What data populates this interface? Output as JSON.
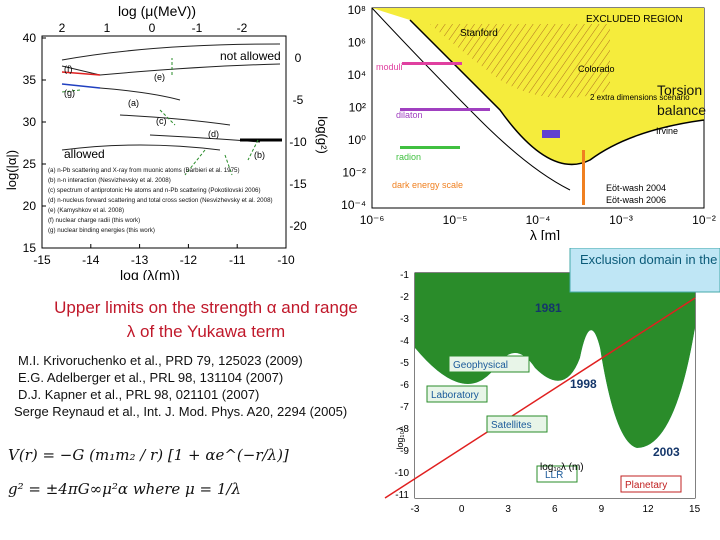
{
  "chart_data": [
    {
      "type": "line",
      "name": "krivoruchenko-bounds",
      "top_axis_label": "log (μ(MeV))",
      "top_ticks": [
        "2",
        "1",
        "0",
        "-1",
        "-2"
      ],
      "xlabel": "log (λ(m))",
      "xticks": [
        "-15",
        "-14",
        "-13",
        "-12",
        "-11",
        "-10"
      ],
      "xlim": [
        -15,
        -10
      ],
      "ylabel": "log(|α|)",
      "yticks": [
        "40",
        "35",
        "30",
        "25",
        "20",
        "15"
      ],
      "ylim": [
        15,
        40
      ],
      "right_axis_label": "log(g²)",
      "right_ticks": [
        "0",
        "-5",
        "-10",
        "-15",
        "-20"
      ],
      "region_labels": [
        "not allowed",
        "allowed"
      ],
      "curve_labels": [
        "(f)",
        "(g)",
        "(e)",
        "(a)",
        "(c)",
        "(d)",
        "(b)"
      ],
      "legend": [
        "(a) n-Pb scattering and X-ray from muonic atoms (Barbieri et al. 1975)",
        "(b) n-n interaction (Nesvizhevsky et al. 2008)",
        "(c) spectrum of antiprotonic He atoms and n-Pb scattering (Pokotilovski 2006)",
        "(d) n-nucleus forward scattering and total cross section (Nesvizhevsky et al. 2008)",
        "(e) (Kamyshkov et al. 2008)",
        "(f) nuclear charge radii (this work)",
        "(g) nuclear binding energies (this work)"
      ],
      "series": [
        {
          "label": "(f)",
          "color": "#e02020",
          "x": [
            -15,
            -14.5,
            -14.2
          ],
          "y": [
            36,
            35.5,
            35
          ]
        },
        {
          "label": "(g)",
          "color": "#2040c0",
          "x": [
            -15,
            -14.5,
            -14.2
          ],
          "y": [
            34.5,
            34,
            33.5
          ]
        },
        {
          "label": "(e)",
          "x": [
            -14.2,
            -13,
            -12,
            -11,
            -10
          ],
          "y": [
            35,
            35.3,
            35.5,
            35.5,
            35.5
          ]
        },
        {
          "label": "(a)",
          "x": [
            -15,
            -14,
            -13,
            -12.5
          ],
          "y": [
            32,
            30,
            29,
            28.5
          ]
        },
        {
          "label": "(c)",
          "x": [
            -13.5,
            -12.5,
            -11.7
          ],
          "y": [
            30,
            28.5,
            27
          ]
        },
        {
          "label": "(d)",
          "x": [
            -13,
            -12,
            -11
          ],
          "y": [
            29,
            27,
            25
          ]
        },
        {
          "label": "(b)",
          "x": [
            -11,
            -10.5,
            -10.1
          ],
          "y": [
            27,
            26.5,
            26
          ]
        }
      ]
    },
    {
      "type": "line",
      "name": "excluded-region",
      "ylabel_ticks": [
        "10⁸",
        "10⁶",
        "10⁴",
        "10²",
        "10⁰",
        "10⁻²",
        "10⁻⁴"
      ],
      "xticks": [
        "10⁻⁶",
        "10⁻⁵",
        "10⁻⁴",
        "10⁻³",
        "10⁻²"
      ],
      "xlabel": "λ  [m]",
      "xlim": [
        -6,
        -2
      ],
      "ylim": [
        -4,
        8
      ],
      "annotations": [
        "Stanford",
        "EXCLUDED REGION",
        "moduli",
        "Colorado",
        "2 extra dimensions scenario",
        "dilaton",
        "Irvine",
        "radion",
        "dark energy scale",
        "Eöt-wash 2004",
        "Eöt-wash 2006"
      ],
      "series": [
        {
          "label": "Eöt-wash",
          "x": [
            -6,
            -5,
            -4.5,
            -4,
            -3.5,
            -3,
            -2
          ],
          "y": [
            8,
            5,
            3,
            1,
            -1,
            -2,
            -3
          ]
        }
      ]
    },
    {
      "type": "area",
      "name": "exclusion-domain",
      "title": "Exclusion domain in the plane (λ,α)",
      "yticks": [
        "-1",
        "-2",
        "-3",
        "-4",
        "-5",
        "-6",
        "-7",
        "-8",
        "-9",
        "-10",
        "-11"
      ],
      "xticks": [
        "-3",
        "0",
        "3",
        "6",
        "9",
        "12",
        "15"
      ],
      "xlabel": "log₁₀λ (m)",
      "ylabel": "log₁₀λ",
      "xlim": [
        -3,
        15
      ],
      "ylim": [
        -11,
        -1
      ],
      "labels": [
        "1981",
        "1998",
        "2003",
        "Geophysical",
        "Laboratory",
        "Satellites",
        "LLR",
        "Planetary"
      ],
      "series": [
        {
          "name": "1981",
          "color": "#2a8c2a",
          "x": [
            -3,
            0,
            3,
            6,
            9,
            12,
            15
          ],
          "y": [
            -1,
            -2,
            -4,
            -5.5,
            -7,
            -9,
            -2
          ]
        },
        {
          "name": "1998",
          "color": "#2a8c2a",
          "x": [
            6,
            9,
            12,
            15
          ],
          "y": [
            -6,
            -7,
            -9.5,
            -2
          ]
        },
        {
          "name": "2003",
          "color": "#c02020",
          "x": [
            9,
            12,
            15
          ],
          "y": [
            -8,
            -10,
            -2
          ]
        }
      ]
    }
  ],
  "side_label": "Torsion balance",
  "caption": {
    "line1": "Upper limits on the strength α and range",
    "line2": "λ of the Yukawa term"
  },
  "references": [
    "M.I. Krivoruchenko et al., PRD 79, 125023 (2009)",
    "E.G. Adelberger et al., PRL 98, 131104 (2007)",
    "D.J. Kapner et al., PRL 98,  021101 (2007)",
    "Serge Reynaud et al., Int. J. Mod. Phys. A20,  2294 (2005)"
  ],
  "formulas": {
    "potential": "V(r) = −G (m₁m₂ / r) [1 + αe^(−r/λ)]",
    "coupling": "g² = ±4πG∞μ²α  where  μ = 1/λ"
  }
}
